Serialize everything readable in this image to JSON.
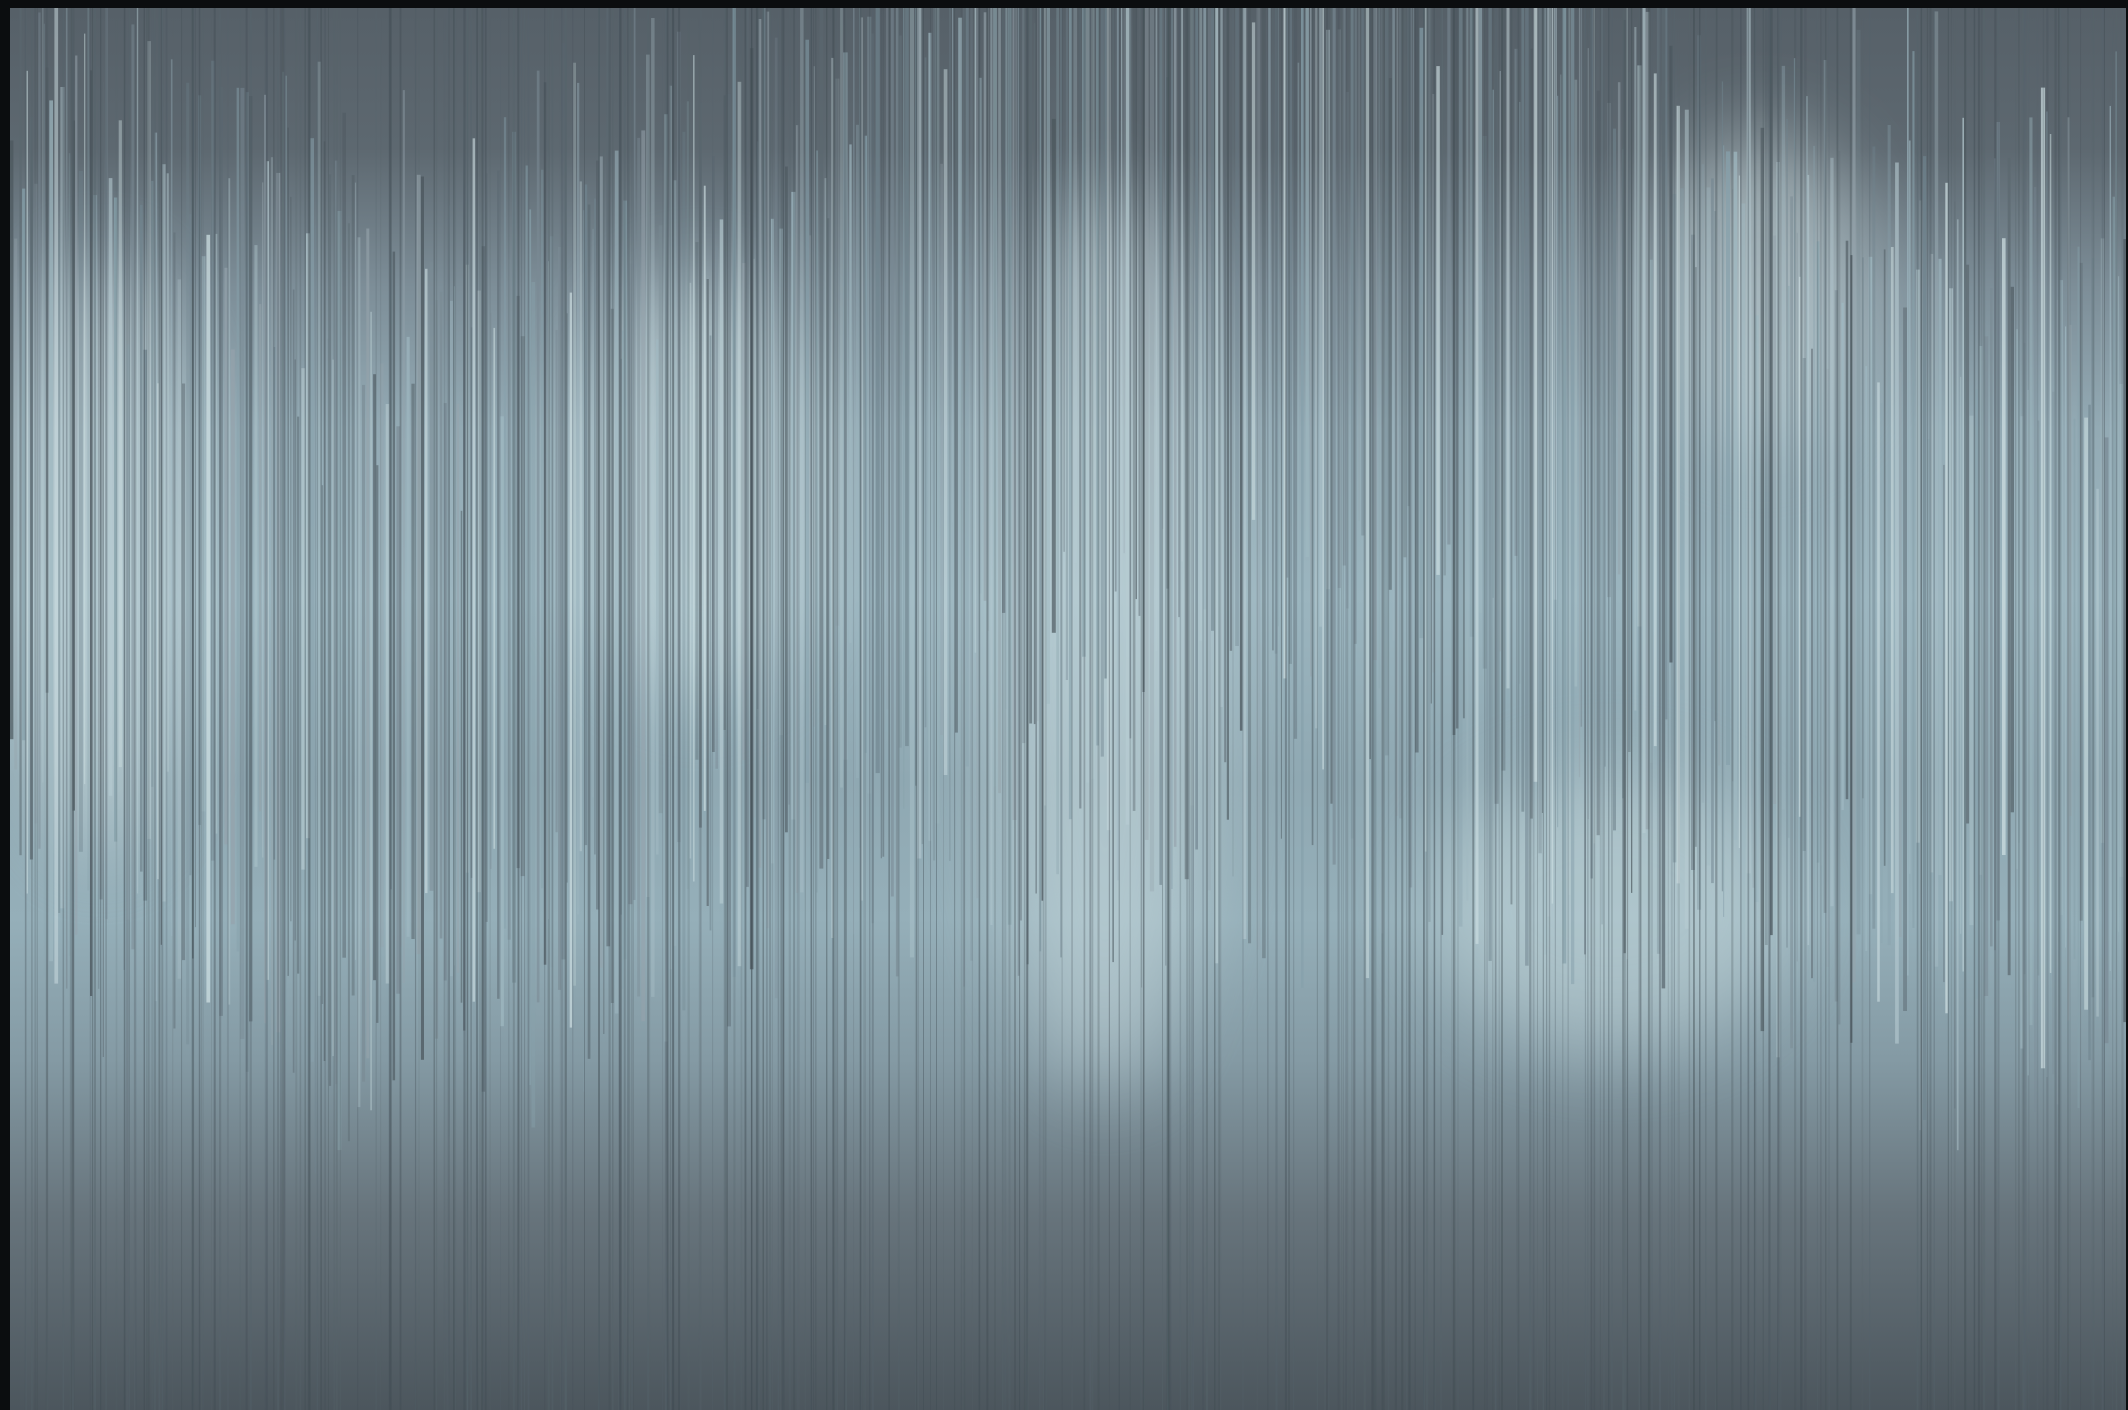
{
  "image": {
    "kind": "abstract-glitch-pattern",
    "description_colors": {
      "top_band": "#59636b",
      "mid_band": "#9bb5bf",
      "highlight": "#cfe0e3",
      "bottom_band": "#4c565d",
      "frame": "#0b0d0f"
    }
  }
}
